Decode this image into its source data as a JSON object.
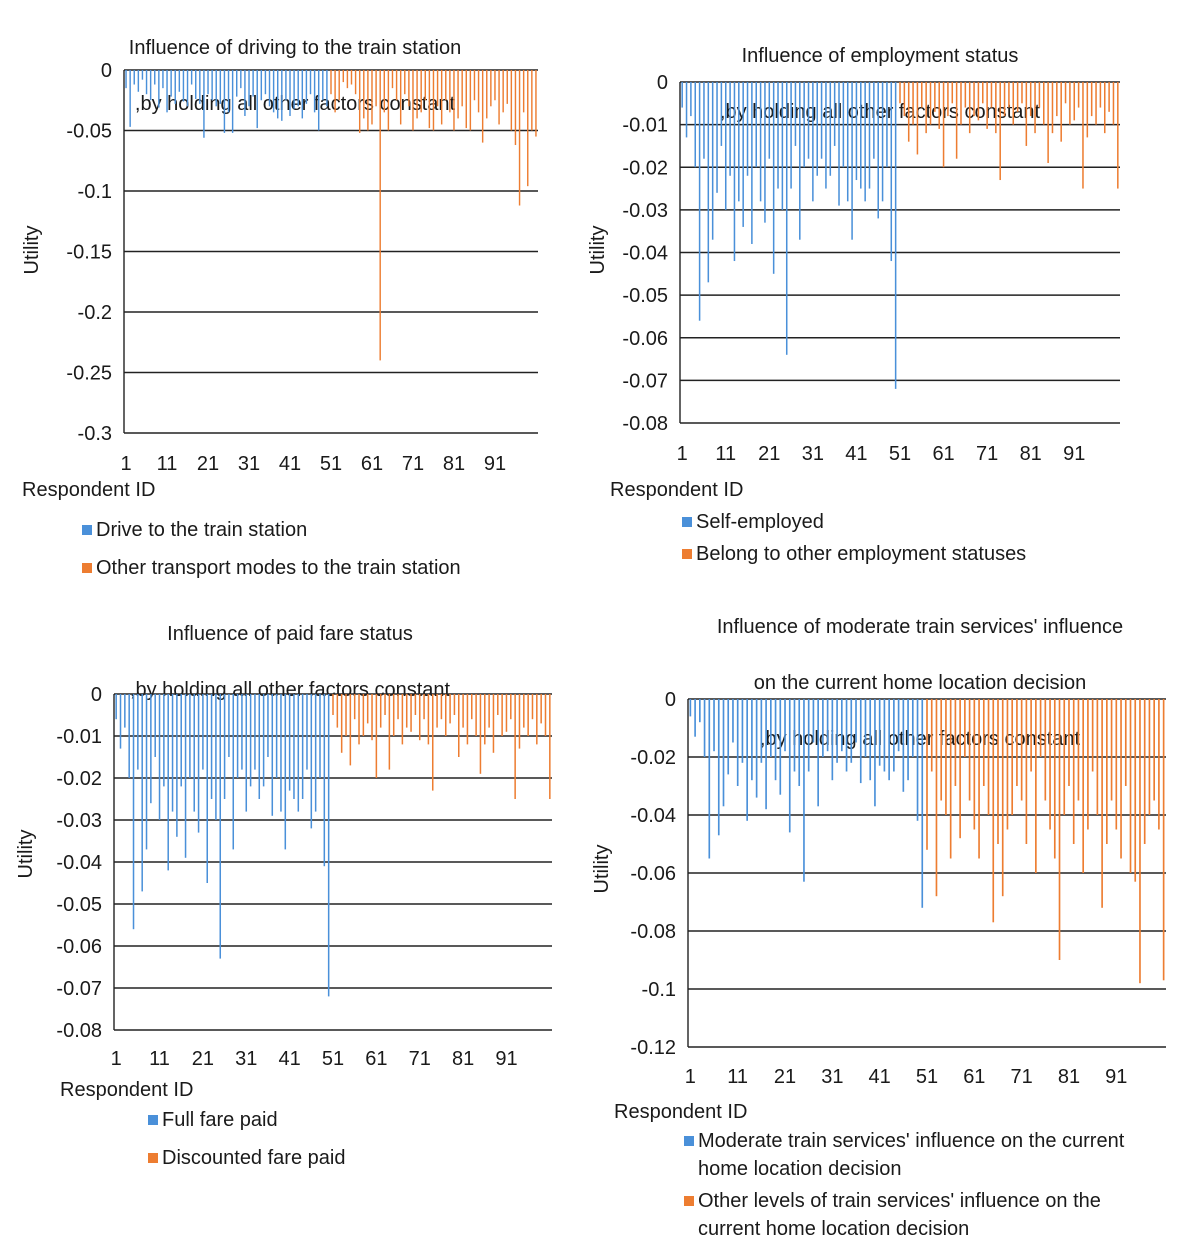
{
  "chart_data": [
    {
      "type": "bar",
      "title": [
        "Influence of  driving to the train station",
        ",by holding all other factors constant"
      ],
      "xlabel": "Respondent ID",
      "ylabel": "Utility",
      "ylim": [
        -0.3,
        0
      ],
      "yticks": [
        "0",
        "-0.05",
        "-0.1",
        "-0.15",
        "-0.2",
        "-0.25",
        "-0.3"
      ],
      "ytick_values": [
        0,
        -0.05,
        -0.1,
        -0.15,
        -0.2,
        -0.25,
        -0.3
      ],
      "xticks": [
        "1",
        "11",
        "21",
        "31",
        "41",
        "51",
        "61",
        "71",
        "81",
        "91"
      ],
      "n": 101,
      "split": 50,
      "grid": "horizontal",
      "legend_position": "bottom",
      "colors": [
        "#4a90d9",
        "#ed7d31"
      ],
      "series": [
        {
          "name": "Drive to the train station",
          "values": [
            -0.015,
            -0.047,
            -0.012,
            -0.018,
            -0.008,
            -0.02,
            -0.025,
            -0.012,
            -0.031,
            -0.015,
            -0.035,
            -0.022,
            -0.028,
            -0.018,
            -0.026,
            -0.03,
            -0.012,
            -0.024,
            -0.028,
            -0.056,
            -0.02,
            -0.025,
            -0.03,
            -0.028,
            -0.052,
            -0.035,
            -0.052,
            -0.022,
            -0.015,
            -0.038,
            -0.03,
            -0.022,
            -0.048,
            -0.025,
            -0.02,
            -0.03,
            -0.035,
            -0.04,
            -0.042,
            -0.025,
            -0.038,
            -0.032,
            -0.03,
            -0.04,
            -0.028,
            -0.02,
            -0.035,
            -0.05,
            -0.025,
            -0.03
          ]
        },
        {
          "name": "Other transport modes to the train station",
          "values": [
            -0.02,
            -0.035,
            -0.025,
            -0.01,
            -0.015,
            -0.012,
            -0.02,
            -0.052,
            -0.04,
            -0.05,
            -0.045,
            -0.03,
            -0.24,
            -0.035,
            -0.05,
            -0.015,
            -0.025,
            -0.045,
            -0.02,
            -0.03,
            -0.05,
            -0.04,
            -0.035,
            -0.025,
            -0.048,
            -0.05,
            -0.03,
            -0.045,
            -0.025,
            -0.035,
            -0.05,
            -0.04,
            -0.03,
            -0.048,
            -0.05,
            -0.025,
            -0.035,
            -0.06,
            -0.04,
            -0.03,
            -0.025,
            -0.045,
            -0.035,
            -0.028,
            -0.05,
            -0.062,
            -0.112,
            -0.035,
            -0.096,
            -0.05,
            -0.055
          ]
        }
      ]
    },
    {
      "type": "bar",
      "title": [
        "Influence of  employment status",
        ",by holding all other factors constant"
      ],
      "xlabel": "Respondent ID",
      "ylabel": "Utility",
      "ylim": [
        -0.08,
        0
      ],
      "yticks": [
        "0",
        "-0.01",
        "-0.02",
        "-0.03",
        "-0.04",
        "-0.05",
        "-0.06",
        "-0.07",
        "-0.08"
      ],
      "ytick_values": [
        0,
        -0.01,
        -0.02,
        -0.03,
        -0.04,
        -0.05,
        -0.06,
        -0.07,
        -0.08
      ],
      "xticks": [
        "1",
        "11",
        "21",
        "31",
        "41",
        "51",
        "61",
        "71",
        "81",
        "91"
      ],
      "n": 101,
      "split": 50,
      "grid": "horizontal",
      "legend_position": "bottom",
      "colors": [
        "#4a90d9",
        "#ed7d31"
      ],
      "series": [
        {
          "name": "Self-employed",
          "values": [
            -0.006,
            -0.013,
            -0.008,
            -0.02,
            -0.056,
            -0.018,
            -0.047,
            -0.037,
            -0.026,
            -0.015,
            -0.03,
            -0.022,
            -0.042,
            -0.028,
            -0.034,
            -0.022,
            -0.038,
            -0.02,
            -0.028,
            -0.033,
            -0.018,
            -0.045,
            -0.025,
            -0.03,
            -0.064,
            -0.025,
            -0.015,
            -0.037,
            -0.02,
            -0.018,
            -0.028,
            -0.022,
            -0.018,
            -0.025,
            -0.022,
            -0.015,
            -0.029,
            -0.02,
            -0.028,
            -0.037,
            -0.023,
            -0.025,
            -0.028,
            -0.025,
            -0.018,
            -0.032,
            -0.028,
            -0.02,
            -0.042,
            -0.072
          ]
        },
        {
          "name": "Belong to other employment statuses",
          "values": [
            -0.005,
            -0.008,
            -0.014,
            -0.01,
            -0.017,
            -0.006,
            -0.012,
            -0.01,
            -0.007,
            -0.011,
            -0.02,
            -0.008,
            -0.005,
            -0.018,
            -0.01,
            -0.006,
            -0.012,
            -0.008,
            -0.009,
            -0.005,
            -0.011,
            -0.006,
            -0.012,
            -0.023,
            -0.008,
            -0.006,
            -0.01,
            -0.007,
            -0.005,
            -0.015,
            -0.008,
            -0.012,
            -0.006,
            -0.01,
            -0.019,
            -0.012,
            -0.008,
            -0.014,
            -0.005,
            -0.01,
            -0.009,
            -0.006,
            -0.025,
            -0.013,
            -0.008,
            -0.01,
            -0.006,
            -0.012,
            -0.007,
            -0.01,
            -0.025
          ]
        }
      ]
    },
    {
      "type": "bar",
      "title": [
        "Influence of paid fare status",
        ",by holding all other factors constant"
      ],
      "xlabel": "Respondent ID",
      "ylabel": "Utility",
      "ylim": [
        -0.08,
        0
      ],
      "yticks": [
        "0",
        "-0.01",
        "-0.02",
        "-0.03",
        "-0.04",
        "-0.05",
        "-0.06",
        "-0.07",
        "-0.08"
      ],
      "ytick_values": [
        0,
        -0.01,
        -0.02,
        -0.03,
        -0.04,
        -0.05,
        -0.06,
        -0.07,
        -0.08
      ],
      "xticks": [
        "1",
        "11",
        "21",
        "31",
        "41",
        "51",
        "61",
        "71",
        "81",
        "91"
      ],
      "n": 101,
      "split": 50,
      "grid": "horizontal",
      "legend_position": "bottom",
      "colors": [
        "#4a90d9",
        "#ed7d31"
      ],
      "series": [
        {
          "name": "Full fare paid",
          "values": [
            -0.006,
            -0.013,
            -0.008,
            -0.02,
            -0.056,
            -0.018,
            -0.047,
            -0.037,
            -0.026,
            -0.015,
            -0.03,
            -0.022,
            -0.042,
            -0.028,
            -0.034,
            -0.022,
            -0.039,
            -0.02,
            -0.028,
            -0.033,
            -0.018,
            -0.045,
            -0.025,
            -0.03,
            -0.063,
            -0.025,
            -0.015,
            -0.037,
            -0.02,
            -0.018,
            -0.028,
            -0.022,
            -0.018,
            -0.025,
            -0.022,
            -0.015,
            -0.029,
            -0.02,
            -0.028,
            -0.037,
            -0.023,
            -0.025,
            -0.028,
            -0.025,
            -0.018,
            -0.032,
            -0.028,
            -0.02,
            -0.041,
            -0.072
          ]
        },
        {
          "name": "Discounted fare paid",
          "values": [
            -0.005,
            -0.008,
            -0.014,
            -0.01,
            -0.017,
            -0.006,
            -0.012,
            -0.01,
            -0.007,
            -0.011,
            -0.02,
            -0.008,
            -0.005,
            -0.018,
            -0.01,
            -0.006,
            -0.012,
            -0.008,
            -0.009,
            -0.005,
            -0.011,
            -0.006,
            -0.012,
            -0.023,
            -0.008,
            -0.006,
            -0.01,
            -0.007,
            -0.005,
            -0.015,
            -0.008,
            -0.012,
            -0.006,
            -0.01,
            -0.019,
            -0.012,
            -0.008,
            -0.014,
            -0.005,
            -0.01,
            -0.009,
            -0.006,
            -0.025,
            -0.013,
            -0.008,
            -0.01,
            -0.006,
            -0.012,
            -0.007,
            -0.01,
            -0.025
          ]
        }
      ]
    },
    {
      "type": "bar",
      "title": [
        "Influence of moderate train services' influence",
        "on the current home location decision",
        ",by holding all other factors constant"
      ],
      "xlabel": "Respondent ID",
      "ylabel": "Utility",
      "ylim": [
        -0.12,
        0
      ],
      "yticks": [
        "0",
        "-0.02",
        "-0.04",
        "-0.06",
        "-0.08",
        "-0.1",
        "-0.12"
      ],
      "ytick_values": [
        0,
        -0.02,
        -0.04,
        -0.06,
        -0.08,
        -0.1,
        -0.12
      ],
      "xticks": [
        "1",
        "11",
        "21",
        "31",
        "41",
        "51",
        "61",
        "71",
        "81",
        "91"
      ],
      "n": 101,
      "split": 50,
      "grid": "horizontal",
      "legend_position": "bottom",
      "colors": [
        "#4a90d9",
        "#ed7d31"
      ],
      "series": [
        {
          "name": "Moderate train services' influence on the current home location decision",
          "values": [
            -0.006,
            -0.013,
            -0.008,
            -0.02,
            -0.055,
            -0.018,
            -0.047,
            -0.037,
            -0.026,
            -0.015,
            -0.03,
            -0.022,
            -0.042,
            -0.028,
            -0.034,
            -0.022,
            -0.038,
            -0.02,
            -0.028,
            -0.033,
            -0.018,
            -0.046,
            -0.025,
            -0.03,
            -0.063,
            -0.025,
            -0.015,
            -0.037,
            -0.02,
            -0.018,
            -0.028,
            -0.022,
            -0.018,
            -0.025,
            -0.022,
            -0.015,
            -0.029,
            -0.02,
            -0.028,
            -0.037,
            -0.023,
            -0.025,
            -0.028,
            -0.025,
            -0.018,
            -0.032,
            -0.028,
            -0.02,
            -0.042,
            -0.072
          ]
        },
        {
          "name": "Other levels of train services' influence on the current home location decision",
          "values": [
            -0.052,
            -0.025,
            -0.068,
            -0.035,
            -0.04,
            -0.055,
            -0.03,
            -0.048,
            -0.02,
            -0.035,
            -0.045,
            -0.055,
            -0.03,
            -0.04,
            -0.077,
            -0.05,
            -0.068,
            -0.045,
            -0.04,
            -0.03,
            -0.035,
            -0.05,
            -0.025,
            -0.06,
            -0.02,
            -0.035,
            -0.045,
            -0.055,
            -0.09,
            -0.04,
            -0.03,
            -0.05,
            -0.035,
            -0.06,
            -0.045,
            -0.025,
            -0.04,
            -0.072,
            -0.05,
            -0.035,
            -0.045,
            -0.055,
            -0.03,
            -0.06,
            -0.063,
            -0.098,
            -0.05,
            -0.04,
            -0.035,
            -0.045,
            -0.097
          ]
        }
      ]
    }
  ]
}
